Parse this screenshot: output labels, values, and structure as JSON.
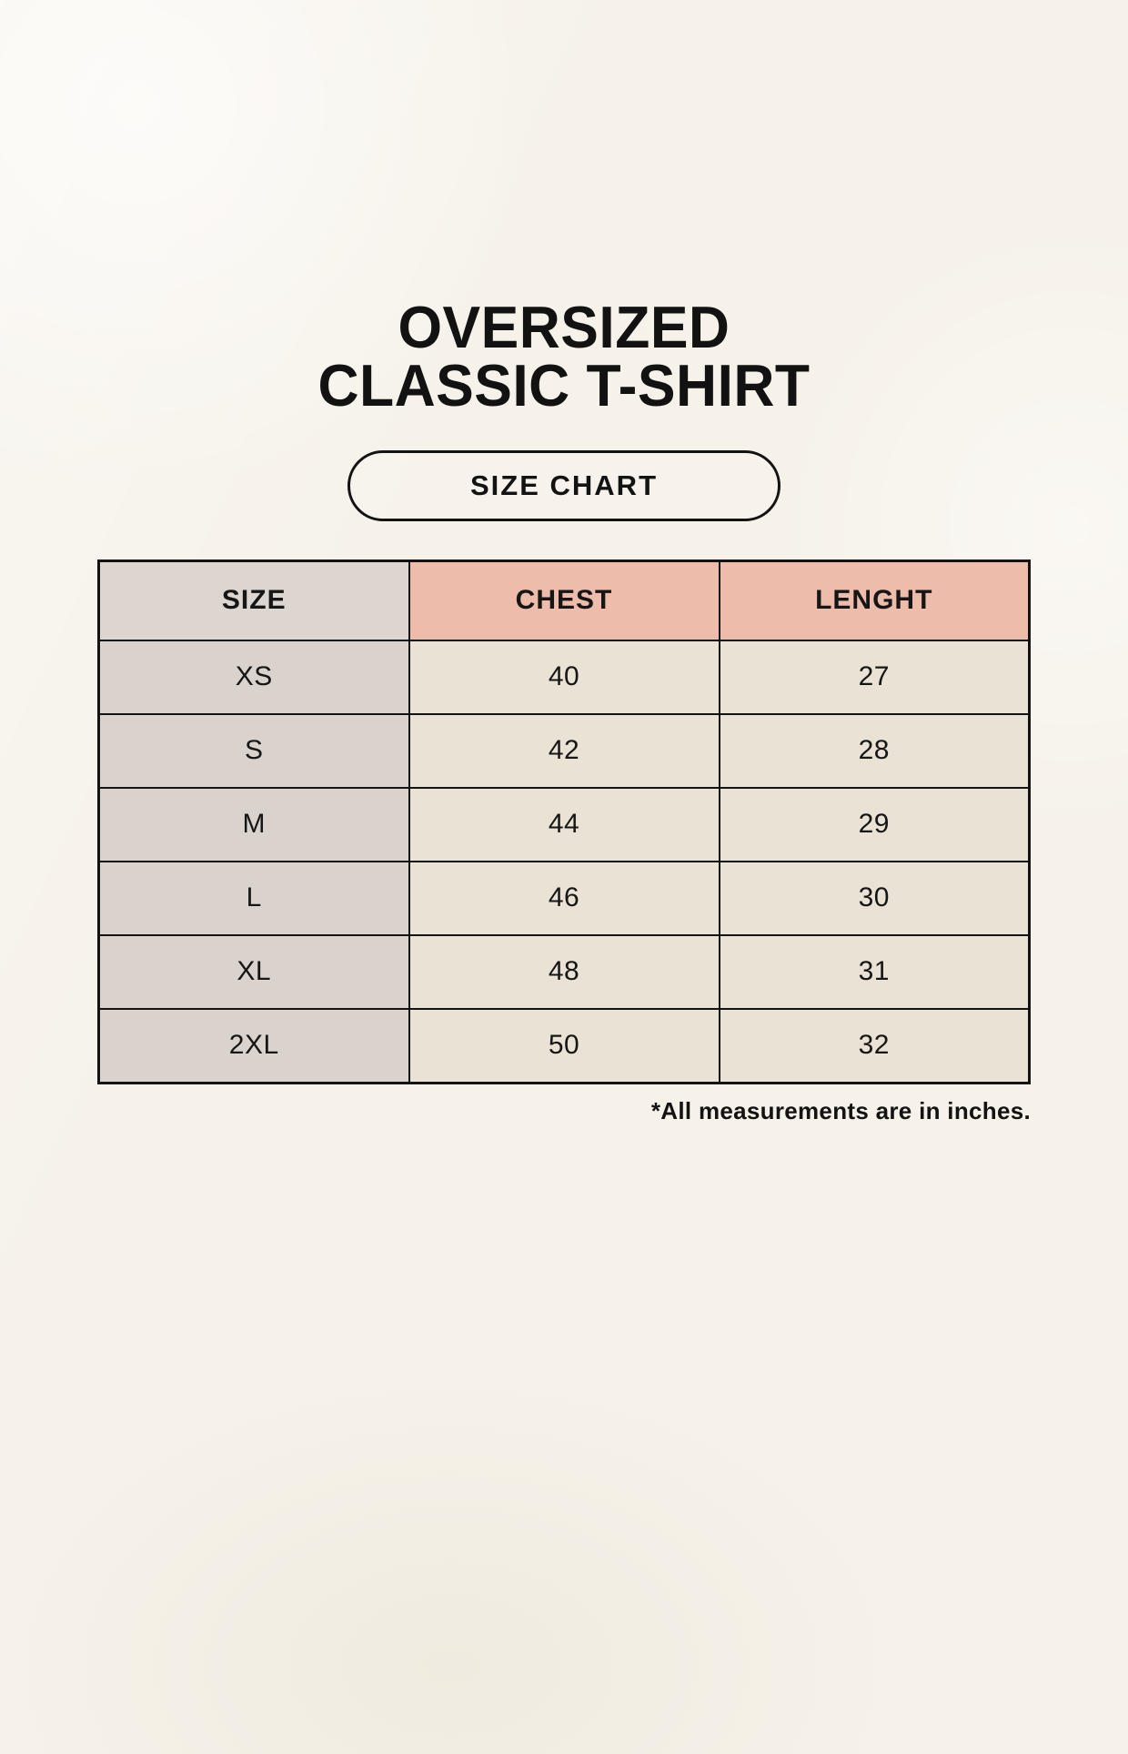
{
  "page": {
    "title": {
      "line1": "OVERSIZED",
      "line2": "CLASSIC T-SHIRT"
    },
    "size_chart_label": "SIZE CHART",
    "footnote": "*All measurements are in inches."
  },
  "chart_data": {
    "type": "table",
    "title": "OVERSIZED CLASSIC T-SHIRT",
    "subtitle": "SIZE CHART",
    "columns": [
      "SIZE",
      "CHEST",
      "LENGHT"
    ],
    "rows": [
      {
        "size": "XS",
        "chest": "40",
        "lenght": "27"
      },
      {
        "size": "S",
        "chest": "42",
        "lenght": "28"
      },
      {
        "size": "M",
        "chest": "44",
        "lenght": "29"
      },
      {
        "size": "L",
        "chest": "46",
        "lenght": "30"
      },
      {
        "size": "XL",
        "chest": "48",
        "lenght": "31"
      },
      {
        "size": "2XL",
        "chest": "50",
        "lenght": "32"
      }
    ],
    "note": "*All measurements are in inches."
  },
  "colors": {
    "page_background": "#f6f2ea",
    "size_header_background": "#dcd5d0",
    "measure_header_background": "#edbcab",
    "row_label_background": "#d9d2cd",
    "data_cell_background": "#e9e2d5",
    "border": "#131313",
    "text": "#131313"
  }
}
